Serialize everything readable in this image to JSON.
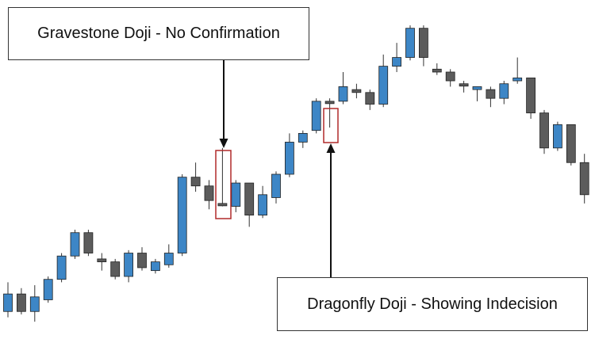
{
  "annotations": {
    "gravestone": "Gravestone Doji - No Confirmation",
    "dragonfly": "Dragonfly Doji - Showing Indecision"
  },
  "colors": {
    "bullish": "#3d86c6",
    "bearish": "#5c5c5c",
    "highlight_box": "#b02a2a",
    "arrow": "#111111"
  },
  "chart_data": {
    "type": "candlestick",
    "title": "",
    "xlabel": "",
    "ylabel": "",
    "axes_visible": false,
    "grid": false,
    "ylim": [
      0,
      100
    ],
    "candles": [
      {
        "open": 4.0,
        "high": 14.0,
        "low": 2.0,
        "close": 10.0,
        "dir": "up"
      },
      {
        "open": 10.0,
        "high": 12.0,
        "low": 3.0,
        "close": 4.0,
        "dir": "down"
      },
      {
        "open": 4.0,
        "high": 13.0,
        "low": 0.5,
        "close": 9.0,
        "dir": "up"
      },
      {
        "open": 8.0,
        "high": 16.0,
        "low": 7.0,
        "close": 15.0,
        "dir": "up"
      },
      {
        "open": 15.0,
        "high": 24.0,
        "low": 14.0,
        "close": 23.0,
        "dir": "up"
      },
      {
        "open": 23.0,
        "high": 32.0,
        "low": 22.0,
        "close": 31.0,
        "dir": "up"
      },
      {
        "open": 31.0,
        "high": 32.0,
        "low": 23.0,
        "close": 24.0,
        "dir": "down"
      },
      {
        "open": 22.0,
        "high": 24.0,
        "low": 18.0,
        "close": 21.0,
        "dir": "down"
      },
      {
        "open": 21.0,
        "high": 22.0,
        "low": 15.0,
        "close": 16.0,
        "dir": "down"
      },
      {
        "open": 16.0,
        "high": 25.0,
        "low": 14.0,
        "close": 24.0,
        "dir": "up"
      },
      {
        "open": 24.0,
        "high": 26.0,
        "low": 18.0,
        "close": 19.0,
        "dir": "down"
      },
      {
        "open": 18.0,
        "high": 22.0,
        "low": 17.0,
        "close": 21.0,
        "dir": "up"
      },
      {
        "open": 20.0,
        "high": 27.0,
        "low": 19.0,
        "close": 24.0,
        "dir": "up"
      },
      {
        "open": 24.0,
        "high": 51.0,
        "low": 23.0,
        "close": 50.0,
        "dir": "up"
      },
      {
        "open": 50.0,
        "high": 55.0,
        "low": 45.0,
        "close": 47.0,
        "dir": "down"
      },
      {
        "open": 47.0,
        "high": 49.0,
        "low": 39.0,
        "close": 42.0,
        "dir": "down"
      },
      {
        "open": 41.0,
        "high": 60.0,
        "low": 40.0,
        "close": 40.5,
        "dir": "down",
        "pattern": "gravestone-doji"
      },
      {
        "open": 40.0,
        "high": 49.0,
        "low": 38.0,
        "close": 48.0,
        "dir": "up"
      },
      {
        "open": 48.0,
        "high": 48.0,
        "low": 33.0,
        "close": 37.0,
        "dir": "down"
      },
      {
        "open": 37.0,
        "high": 47.0,
        "low": 36.0,
        "close": 44.0,
        "dir": "up"
      },
      {
        "open": 43.0,
        "high": 52.0,
        "low": 41.0,
        "close": 51.0,
        "dir": "up"
      },
      {
        "open": 51.0,
        "high": 65.0,
        "low": 50.0,
        "close": 62.0,
        "dir": "up"
      },
      {
        "open": 62.0,
        "high": 66.0,
        "low": 60.0,
        "close": 65.0,
        "dir": "up"
      },
      {
        "open": 66.0,
        "high": 77.0,
        "low": 65.0,
        "close": 76.0,
        "dir": "up"
      },
      {
        "open": 76.0,
        "high": 77.0,
        "low": 67.0,
        "close": 76.0,
        "dir": "down",
        "pattern": "dragonfly-doji"
      },
      {
        "open": 76.0,
        "high": 86.0,
        "low": 75.0,
        "close": 81.0,
        "dir": "up"
      },
      {
        "open": 80.0,
        "high": 82.0,
        "low": 77.0,
        "close": 79.0,
        "dir": "down"
      },
      {
        "open": 79.0,
        "high": 80.0,
        "low": 73.0,
        "close": 75.0,
        "dir": "down"
      },
      {
        "open": 75.0,
        "high": 92.0,
        "low": 74.0,
        "close": 88.0,
        "dir": "up"
      },
      {
        "open": 88.0,
        "high": 96.0,
        "low": 86.0,
        "close": 91.0,
        "dir": "up"
      },
      {
        "open": 91.0,
        "high": 102.0,
        "low": 90.0,
        "close": 101.0,
        "dir": "up"
      },
      {
        "open": 101.0,
        "high": 102.0,
        "low": 88.0,
        "close": 91.0,
        "dir": "down"
      },
      {
        "open": 87.0,
        "high": 89.0,
        "low": 85.0,
        "close": 86.0,
        "dir": "down"
      },
      {
        "open": 86.0,
        "high": 87.0,
        "low": 81.0,
        "close": 83.0,
        "dir": "down"
      },
      {
        "open": 82.0,
        "high": 83.0,
        "low": 79.0,
        "close": 81.5,
        "dir": "down"
      },
      {
        "open": 80.0,
        "high": 81.0,
        "low": 76.0,
        "close": 81.0,
        "dir": "up"
      },
      {
        "open": 80.0,
        "high": 81.0,
        "low": 74.0,
        "close": 77.0,
        "dir": "down"
      },
      {
        "open": 77.0,
        "high": 83.0,
        "low": 75.0,
        "close": 82.0,
        "dir": "up"
      },
      {
        "open": 83.0,
        "high": 91.0,
        "low": 82.0,
        "close": 84.0,
        "dir": "up"
      },
      {
        "open": 84.0,
        "high": 84.0,
        "low": 70.0,
        "close": 72.0,
        "dir": "down"
      },
      {
        "open": 72.0,
        "high": 73.0,
        "low": 58.0,
        "close": 60.0,
        "dir": "down"
      },
      {
        "open": 60.0,
        "high": 69.0,
        "low": 59.0,
        "close": 68.0,
        "dir": "up"
      },
      {
        "open": 68.0,
        "high": 68.0,
        "low": 54.0,
        "close": 55.0,
        "dir": "down"
      },
      {
        "open": 55.0,
        "high": 58.0,
        "low": 41.0,
        "close": 44.0,
        "dir": "down"
      }
    ]
  }
}
